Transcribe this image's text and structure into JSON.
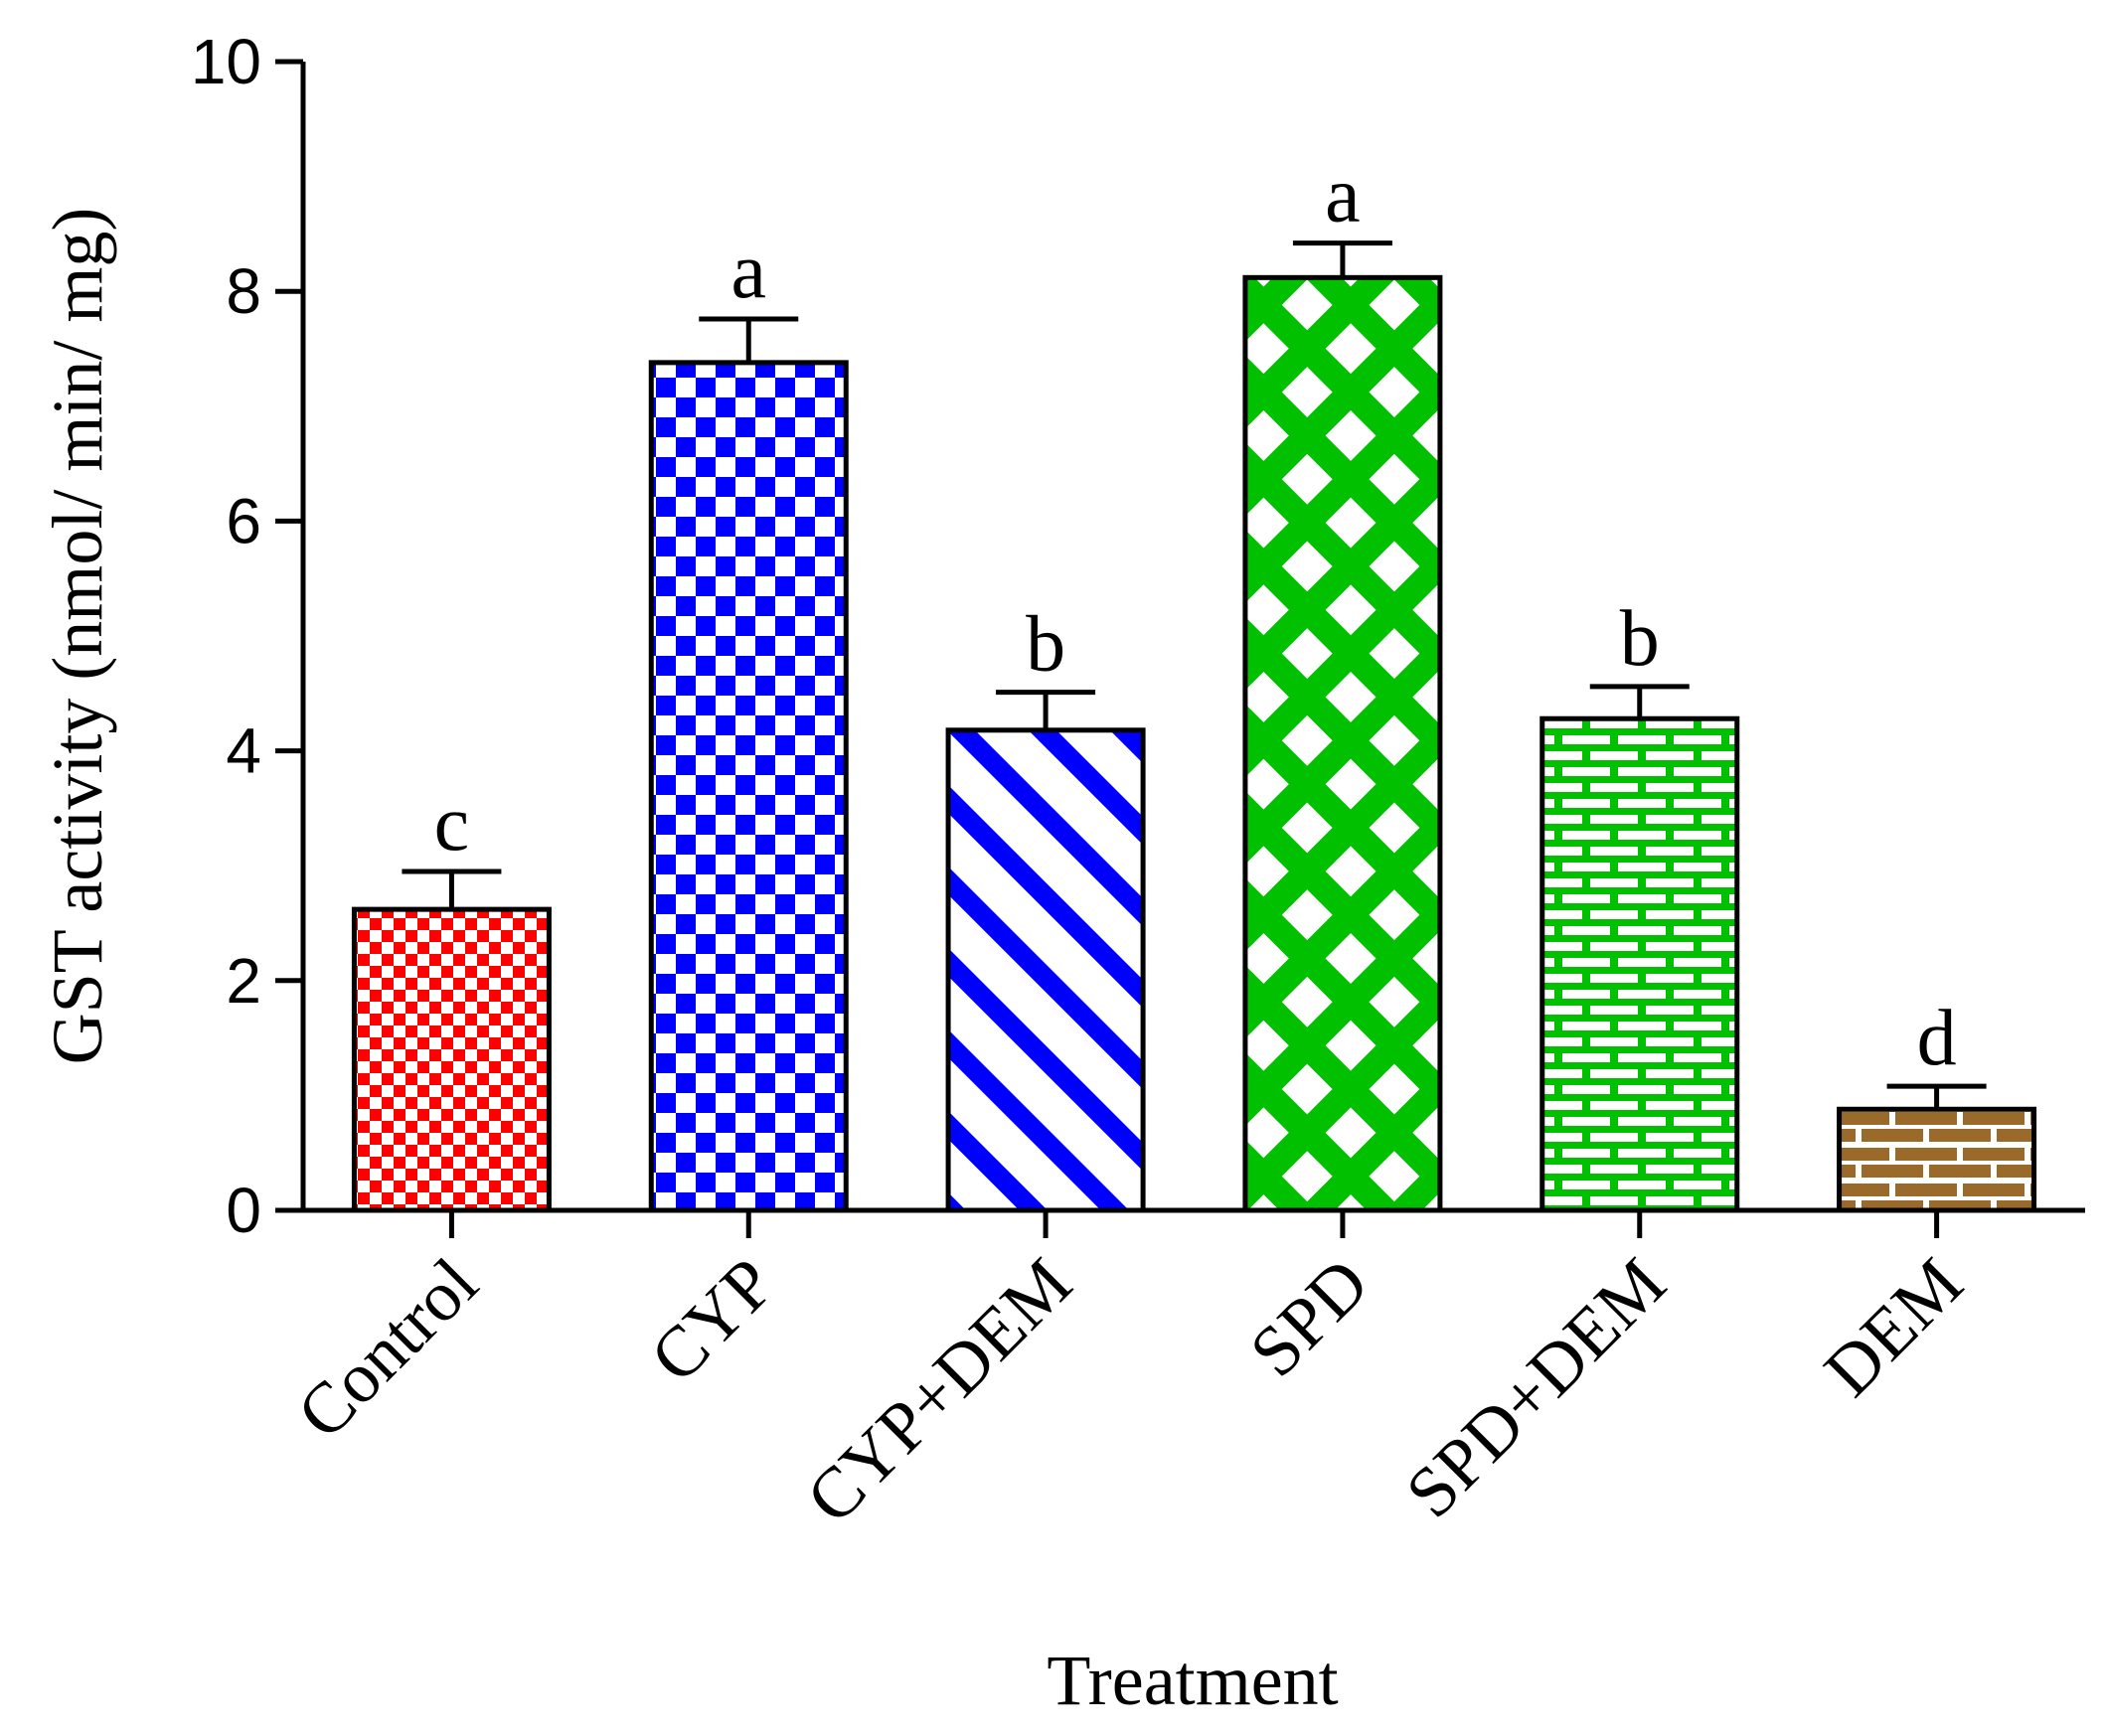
{
  "chart_data": {
    "type": "bar",
    "title": "",
    "xlabel": "Treatment",
    "ylabel": "GST activity (nmol/ min/ mg)",
    "ylim": [
      0,
      10
    ],
    "yticks": [
      "0",
      "2",
      "4",
      "6",
      "8",
      "10"
    ],
    "grid": false,
    "legend": "none",
    "categories": [
      "Control",
      "CYP",
      "CYP+DEM",
      "SPD",
      "SPD+DEM",
      "DEM"
    ],
    "values": [
      2.62,
      7.38,
      4.18,
      8.12,
      4.28,
      0.88
    ],
    "errors": [
      0.33,
      0.38,
      0.33,
      0.3,
      0.28,
      0.2
    ],
    "significance_labels": [
      "c",
      "a",
      "b",
      "a",
      "b",
      "d"
    ],
    "colors": [
      "#ff0000",
      "#0000ff",
      "#0000ff",
      "#00c000",
      "#00c000",
      "#9a6a2a"
    ],
    "patterns": [
      "check-small",
      "check",
      "diagonal",
      "lattice",
      "brick",
      "brick-brown"
    ]
  }
}
